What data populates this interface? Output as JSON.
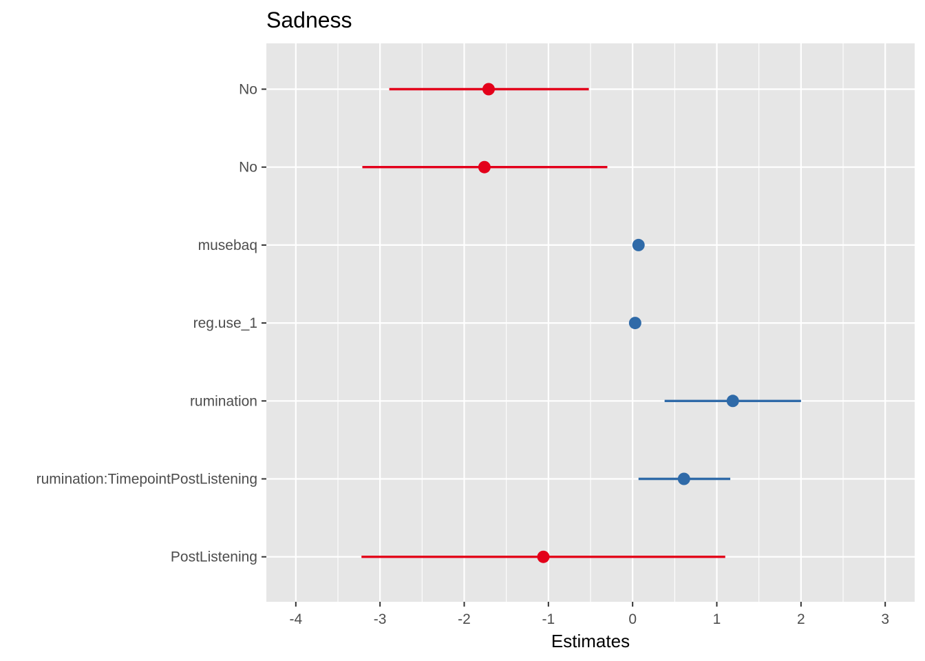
{
  "chart_data": {
    "type": "forest",
    "title": "Sadness",
    "xlabel": "Estimates",
    "ylabel": "",
    "xlim": [
      -4.35,
      3.35
    ],
    "x_ticks": [
      -4,
      -3,
      -2,
      -1,
      0,
      1,
      2,
      3
    ],
    "x_tick_labels": [
      "-4",
      "-3",
      "-2",
      "-1",
      "0",
      "1",
      "2",
      "3"
    ],
    "grid": true,
    "legend": "none",
    "colors": {
      "negative": "#e3001a",
      "positive": "#2f6aa8",
      "panel": "#e6e6e6",
      "grid": "#ffffff"
    },
    "terms": [
      {
        "label": "No",
        "estimate": -1.71,
        "conf_low": -2.89,
        "conf_high": -0.52,
        "sign": "negative"
      },
      {
        "label": "No",
        "estimate": -1.76,
        "conf_low": -3.21,
        "conf_high": -0.3,
        "sign": "negative"
      },
      {
        "label": "musebaq",
        "estimate": 0.07,
        "conf_low": 0.07,
        "conf_high": 0.07,
        "sign": "positive"
      },
      {
        "label": "reg.use_1",
        "estimate": 0.03,
        "conf_low": 0.03,
        "conf_high": 0.03,
        "sign": "positive"
      },
      {
        "label": "rumination",
        "estimate": 1.19,
        "conf_low": 0.38,
        "conf_high": 2.0,
        "sign": "positive"
      },
      {
        "label": "rumination:TimepointPostListening",
        "estimate": 0.61,
        "conf_low": 0.07,
        "conf_high": 1.16,
        "sign": "positive"
      },
      {
        "label": "PostListening",
        "estimate": -1.06,
        "conf_low": -3.22,
        "conf_high": 1.1,
        "sign": "negative"
      }
    ]
  }
}
